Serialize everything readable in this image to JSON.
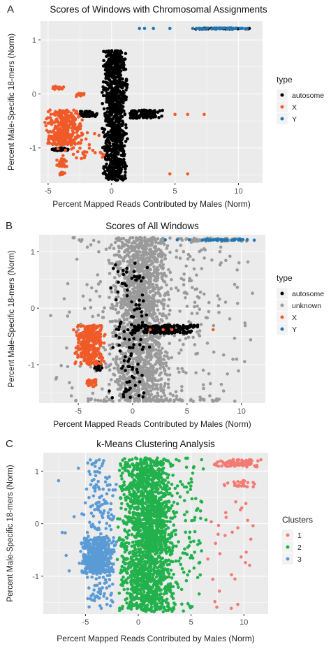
{
  "colors": {
    "autosome": "#000000",
    "unknown": "#9a9a9a",
    "X": "#f05a28",
    "Y": "#1f78b4",
    "cluster1": "#f27b73",
    "cluster2": "#22b14c",
    "cluster3": "#5b9bd5",
    "panel_bg": "#ebebeb",
    "grid": "#ffffff"
  },
  "chart_data": [
    {
      "panel_letter": "A",
      "type": "scatter",
      "title": "Scores of Windows with Chromosomal Assignments",
      "xlabel": "Percent Mapped Reads Contributed by Males (Norm)",
      "ylabel": "Percent Male-Specific 18-mers (Norm)",
      "xlim": [
        -5.6,
        11.9
      ],
      "ylim": [
        -1.65,
        1.35
      ],
      "xticks": [
        -5,
        0,
        5,
        10
      ],
      "yticks": [
        -1,
        0,
        1
      ],
      "xtick_labels": [
        "-5",
        "0",
        "5",
        "10"
      ],
      "ytick_labels": [
        "-1",
        "0",
        "1"
      ],
      "grid": true,
      "legend": {
        "title": "type",
        "placement": "right",
        "entries": [
          "autosome",
          "X",
          "Y"
        ]
      },
      "series": [
        {
          "name": "autosome",
          "color_key": "autosome",
          "regions": [
            {
              "x": [
                -0.8,
                1.3
              ],
              "y": [
                -1.6,
                0.8
              ],
              "n": 950
            },
            {
              "x": [
                1.2,
                4.2
              ],
              "y": [
                -0.45,
                -0.3
              ],
              "n": 120
            },
            {
              "x": [
                -2.6,
                -1.0
              ],
              "y": [
                -0.42,
                -0.32
              ],
              "n": 70
            },
            {
              "x": [
                -5.0,
                -3.0
              ],
              "y": [
                -1.05,
                -1.0
              ],
              "n": 40
            },
            {
              "x": [
                6.0,
                11.4
              ],
              "y": [
                1.2,
                1.22
              ],
              "n": 40
            }
          ]
        },
        {
          "name": "X",
          "color_key": "X",
          "regions": [
            {
              "x": [
                -5.3,
                -2.2
              ],
              "y": [
                -0.95,
                -0.3
              ],
              "n": 320
            },
            {
              "x": [
                -4.9,
                -3.6
              ],
              "y": [
                0.08,
                0.14
              ],
              "n": 14
            },
            {
              "x": [
                -3.0,
                -2.1
              ],
              "y": [
                -0.05,
                0.02
              ],
              "n": 10
            },
            {
              "x": [
                -4.4,
                -3.5
              ],
              "y": [
                -1.35,
                -1.2
              ],
              "n": 30
            },
            {
              "x": [
                -4.2,
                -3.6
              ],
              "y": [
                -1.5,
                -1.45
              ],
              "n": 12
            },
            {
              "x": [
                -5.0,
                0.0
              ],
              "y": [
                -1.2,
                -0.7
              ],
              "n": 40
            }
          ],
          "points": [
            [
              5.0,
              -0.38
            ],
            [
              6.0,
              -0.38
            ],
            [
              7.3,
              -0.38
            ],
            [
              4.6,
              -1.48
            ],
            [
              6.0,
              -1.48
            ]
          ]
        },
        {
          "name": "Y",
          "color_key": "Y",
          "regions": [
            {
              "x": [
                6.0,
                11.6
              ],
              "y": [
                1.2,
                1.22
              ],
              "n": 40
            }
          ],
          "points": [
            [
              2.2,
              1.21
            ],
            [
              2.6,
              1.21
            ],
            [
              3.3,
              1.21
            ],
            [
              4.6,
              1.21
            ]
          ]
        }
      ]
    },
    {
      "panel_letter": "B",
      "type": "scatter",
      "title": "Scores of All Windows",
      "xlabel": "Percent Mapped Reads Contributed by Males (Norm)",
      "ylabel": "Percent Male-Specific 18-mers (Norm)",
      "xlim": [
        -8.6,
        12.2
      ],
      "ylim": [
        -1.68,
        1.3
      ],
      "xticks": [
        -5,
        0,
        5,
        10
      ],
      "yticks": [
        -1,
        0,
        1
      ],
      "xtick_labels": [
        "-5",
        "0",
        "5",
        "10"
      ],
      "ytick_labels": [
        "-1",
        "0",
        "1"
      ],
      "grid": true,
      "legend": {
        "title": "type",
        "placement": "right",
        "entries": [
          "autosome",
          "unknown",
          "X",
          "Y"
        ]
      },
      "series": [
        {
          "name": "unknown",
          "color_key": "unknown",
          "regions": [
            {
              "x": [
                -2.2,
                3.6
              ],
              "y": [
                -1.65,
                1.25
              ],
              "n": 1500
            },
            {
              "x": [
                -8.0,
                11.8
              ],
              "y": [
                -1.65,
                1.25
              ],
              "n": 380
            },
            {
              "x": [
                3.0,
                11.8
              ],
              "y": [
                1.18,
                1.24
              ],
              "n": 60
            },
            {
              "x": [
                -6.2,
                9.5
              ],
              "y": [
                -1.65,
                -1.6
              ],
              "n": 70
            }
          ]
        },
        {
          "name": "autosome",
          "color_key": "autosome",
          "regions": [
            {
              "x": [
                -0.5,
                6.5
              ],
              "y": [
                -0.45,
                -0.3
              ],
              "n": 180
            },
            {
              "x": [
                -2.3,
                1.8
              ],
              "y": [
                -1.6,
                0.8
              ],
              "n": 110
            },
            {
              "x": [
                -3.6,
                -2.8
              ],
              "y": [
                -1.1,
                -0.95
              ],
              "n": 20
            }
          ]
        },
        {
          "name": "X",
          "color_key": "X",
          "regions": [
            {
              "x": [
                -5.5,
                -2.4
              ],
              "y": [
                -1.0,
                -0.3
              ],
              "n": 300
            },
            {
              "x": [
                -4.3,
                -3.3
              ],
              "y": [
                -1.4,
                -1.25
              ],
              "n": 25
            }
          ],
          "points": [
            [
              1.6,
              -0.38
            ],
            [
              2.8,
              -0.38
            ],
            [
              3.6,
              -0.38
            ],
            [
              7.4,
              -0.38
            ]
          ]
        },
        {
          "name": "Y",
          "color_key": "Y",
          "regions": [
            {
              "x": [
                6.2,
                11.6
              ],
              "y": [
                1.2,
                1.22
              ],
              "n": 40
            }
          ],
          "points": [
            [
              3.0,
              1.21
            ],
            [
              4.1,
              1.21
            ],
            [
              5.2,
              1.21
            ]
          ]
        }
      ]
    },
    {
      "panel_letter": "C",
      "type": "scatter",
      "title": "k-Means Clustering Analysis",
      "xlabel": "Percent Mapped Reads Contributed by Males (Norm)",
      "ylabel": "Percent Male-Specific 18-mers (Norm)",
      "xlim": [
        -9.0,
        12.3
      ],
      "ylim": [
        -1.72,
        1.35
      ],
      "xticks": [
        -5,
        0,
        5,
        10
      ],
      "yticks": [
        -1,
        0,
        1
      ],
      "xtick_labels": [
        "-5",
        "0",
        "5",
        "10"
      ],
      "ytick_labels": [
        "-1",
        "0",
        "1"
      ],
      "grid": true,
      "legend": {
        "title": "Clusters",
        "placement": "right",
        "entries": [
          "1",
          "2",
          "3"
        ]
      },
      "series": [
        {
          "name": "1",
          "color_key": "cluster1",
          "regions": [
            {
              "x": [
                7.0,
                11.7
              ],
              "y": [
                1.08,
                1.22
              ],
              "n": 90
            },
            {
              "x": [
                8.0,
                11.6
              ],
              "y": [
                0.7,
                0.82
              ],
              "n": 25
            },
            {
              "x": [
                6.0,
                11.8
              ],
              "y": [
                -1.65,
                0.5
              ],
              "n": 30
            }
          ]
        },
        {
          "name": "2",
          "color_key": "cluster2",
          "regions": [
            {
              "x": [
                -2.1,
                3.8
              ],
              "y": [
                -1.68,
                1.25
              ],
              "n": 1800
            },
            {
              "x": [
                3.0,
                6.6
              ],
              "y": [
                -1.68,
                1.25
              ],
              "n": 90
            }
          ]
        },
        {
          "name": "3",
          "color_key": "cluster3",
          "regions": [
            {
              "x": [
                -5.6,
                -2.1
              ],
              "y": [
                -0.95,
                -0.25
              ],
              "n": 420
            },
            {
              "x": [
                -5.3,
                -2.0
              ],
              "y": [
                -1.65,
                1.22
              ],
              "n": 220
            },
            {
              "x": [
                -8.5,
                -5.0
              ],
              "y": [
                -1.2,
                1.22
              ],
              "n": 8
            }
          ]
        }
      ]
    }
  ]
}
